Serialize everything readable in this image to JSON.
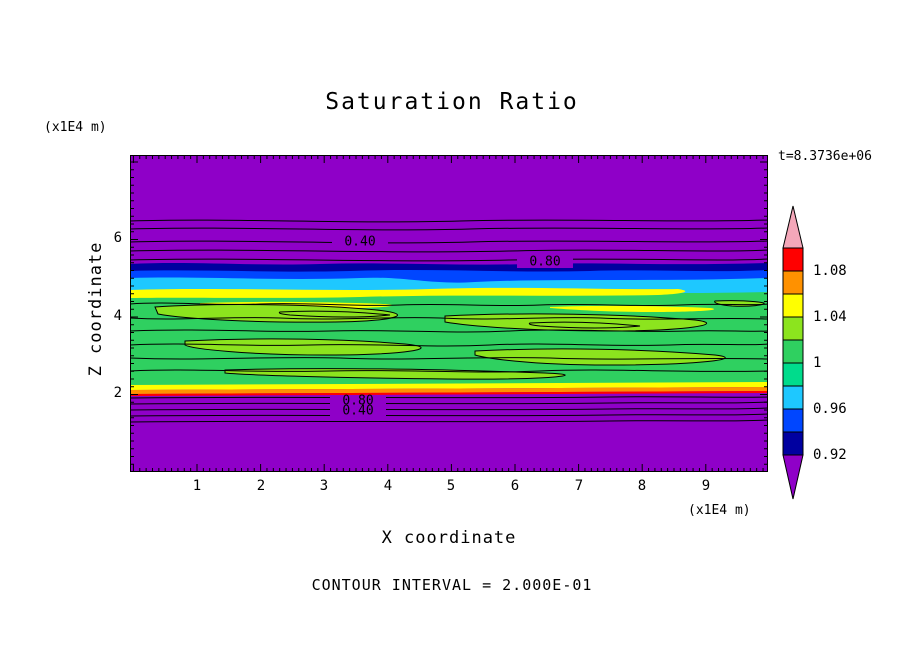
{
  "title": "Saturation Ratio",
  "time_label": "t=8.3736e+06",
  "contour_note": "CONTOUR INTERVAL = 2.000E-01",
  "axes": {
    "x_label": "X coordinate",
    "x_unit": "(x1E4 m)",
    "y_label": "Z coordinate",
    "y_unit": "(x1E4 m)",
    "x_ticks": [
      "1",
      "2",
      "3",
      "4",
      "5",
      "6",
      "7",
      "8",
      "9"
    ],
    "y_ticks": [
      "6",
      "4",
      "2"
    ]
  },
  "plot_labels": {
    "upper_040": "0.40",
    "upper_080": "0.80",
    "lower_080": "0.80",
    "lower_040": "0.40"
  },
  "colors": {
    "purple": "#8F00C8",
    "navy": "#0000A0",
    "blue": "#0046FF",
    "cyan": "#1EC8FF",
    "green": "#2FD060",
    "spring_green": "#00DC8C",
    "yellow_green": "#8CE41E",
    "yellow": "#FFFF00",
    "orange": "#FF9100",
    "red": "#FF0000",
    "pink": "#F4A7B9",
    "line": "#000000"
  },
  "colorbar": {
    "labels": [
      "1.08",
      "1.04",
      "1",
      "0.96",
      "0.92"
    ],
    "colors": [
      "#FF0000",
      "#FF9100",
      "#FFFF00",
      "#8CE41E",
      "#2FD060",
      "#00DC8C",
      "#1EC8FF",
      "#0046FF",
      "#0000A0"
    ],
    "tip_top": "#F4A7B9",
    "tip_bottom": "#8F00C8"
  },
  "chart_data": {
    "type": "heatmap",
    "title": "Saturation Ratio",
    "xlabel": "X coordinate (x1E4 m)",
    "ylabel": "Z coordinate (x1E4 m)",
    "x_range": [
      0,
      10
    ],
    "z_range": [
      0,
      8.2
    ],
    "x_tick_values": [
      1,
      2,
      3,
      4,
      5,
      6,
      7,
      8,
      9
    ],
    "z_tick_values": [
      2,
      4,
      6
    ],
    "time": "t=8.3736e+06",
    "contour_interval": 0.2,
    "labeled_contour_values": [
      0.4,
      0.8
    ],
    "colorbar": {
      "tick_values": [
        1.08,
        1.04,
        1.0,
        0.96,
        0.92
      ],
      "band_step": 0.02,
      "orientation": "vertical-right",
      "band_colors_top_to_bottom": [
        "pink",
        "red",
        "orange",
        "yellow",
        "yellow-green",
        "green",
        "spring-green",
        "cyan",
        "blue",
        "navy",
        "purple"
      ]
    },
    "field_summary": [
      {
        "region": "z > 5.4",
        "saturation_ratio": "< 0.4 (purple background)"
      },
      {
        "region": "5.1 < z < 5.4",
        "saturation_ratio": "0.88 - 0.98 (navy / blue / cyan transition band)"
      },
      {
        "region": "5.0 < z < 5.15",
        "saturation_ratio": "1.04 - 1.06 (bright yellow streak)"
      },
      {
        "region": "2.1 < z < 5.0",
        "saturation_ratio": "0.98 - 1.04 (green with yellow-green patches and wavy contour lines)"
      },
      {
        "region": "2.0 < z < 2.1",
        "saturation_ratio": "1.06 - 1.10 (thin yellow / orange / red layer)"
      },
      {
        "region": "z < 2.0",
        "saturation_ratio": "< 0.4 (purple background)"
      }
    ]
  }
}
